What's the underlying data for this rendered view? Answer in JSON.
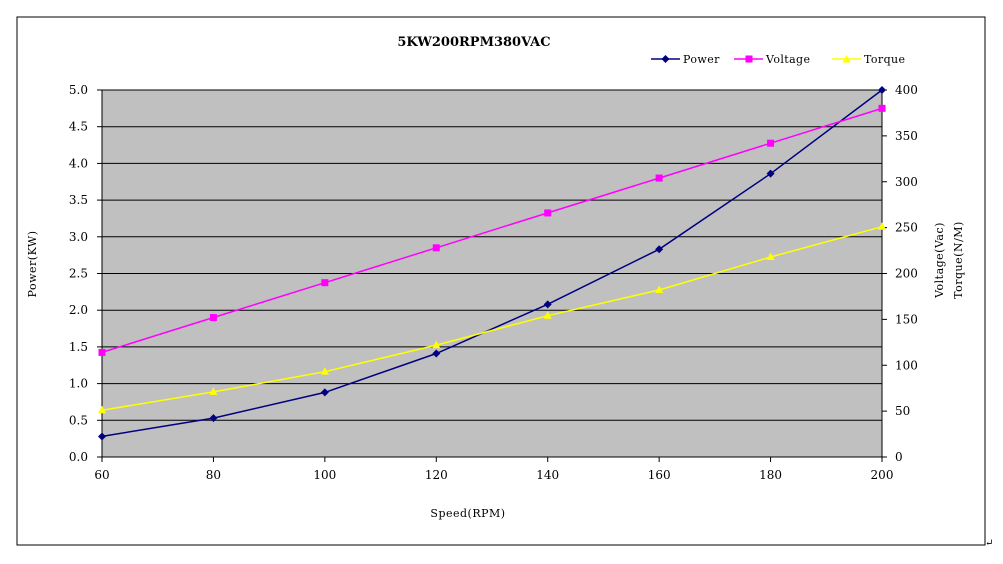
{
  "chart_data": {
    "type": "line",
    "title": "5KW200RPM380VAC",
    "xlabel": "Speed(RPM)",
    "ylabel_left": "Power(KW)",
    "ylabel_right": [
      "Voltage(Vac)",
      "Torque(N/M)"
    ],
    "x": [
      60,
      80,
      100,
      120,
      140,
      160,
      180,
      200
    ],
    "xlim": [
      60,
      200
    ],
    "x_ticks": [
      "60",
      "80",
      "100",
      "120",
      "140",
      "160",
      "180",
      "200"
    ],
    "ylim_left": [
      0,
      5
    ],
    "y_left_ticks": [
      "0.0",
      "0.5",
      "1.0",
      "1.5",
      "2.0",
      "2.5",
      "3.0",
      "3.5",
      "4.0",
      "4.5",
      "5.0"
    ],
    "ylim_right": [
      0,
      400
    ],
    "y_right_ticks": [
      "0",
      "50",
      "100",
      "150",
      "200",
      "250",
      "300",
      "350",
      "400"
    ],
    "grid": "horizontal",
    "plot_background": "#c0c0c0",
    "legend_position": "top-right",
    "series": [
      {
        "name": "Power",
        "axis": "left",
        "color": "#000080",
        "marker": "diamond",
        "values": [
          0.28,
          0.53,
          0.88,
          1.41,
          2.08,
          2.83,
          3.86,
          5.0
        ]
      },
      {
        "name": "Voltage",
        "axis": "right",
        "color": "#ff00ff",
        "marker": "square",
        "values": [
          114,
          152,
          190,
          228,
          266,
          304,
          342,
          380
        ]
      },
      {
        "name": "Torque",
        "axis": "right",
        "color": "#ffff00",
        "marker": "triangle",
        "values": [
          51,
          71,
          93,
          122,
          154,
          182,
          218,
          251
        ]
      }
    ]
  }
}
